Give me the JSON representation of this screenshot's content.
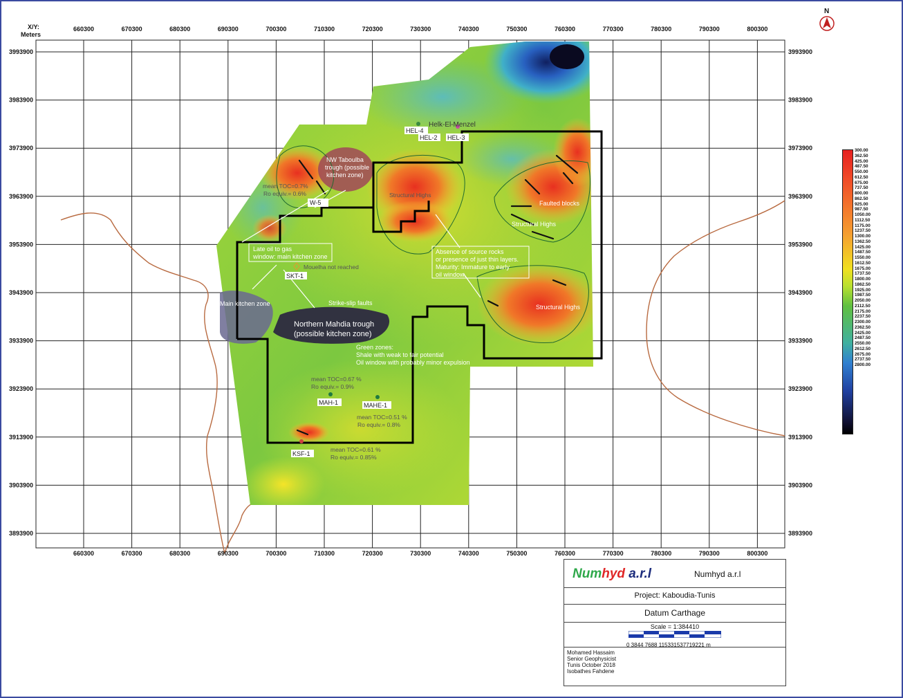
{
  "corner_label": [
    "X/Y:",
    "Meters"
  ],
  "x_ticks": [
    "660300",
    "670300",
    "680300",
    "690300",
    "700300",
    "710300",
    "720300",
    "730300",
    "740300",
    "750300",
    "760300",
    "770300",
    "780300",
    "790300",
    "800300"
  ],
  "y_ticks": [
    "3993900",
    "3983900",
    "3973900",
    "3963900",
    "3953900",
    "3943900",
    "3933900",
    "3923900",
    "3913900",
    "3903900",
    "3893900"
  ],
  "north_label": "N",
  "legend": [
    "300.00",
    "362.50",
    "425.00",
    "487.50",
    "550.00",
    "612.50",
    "675.00",
    "737.50",
    "800.00",
    "862.50",
    "925.00",
    "987.50",
    "1050.00",
    "1112.50",
    "1175.00",
    "1237.50",
    "1300.00",
    "1362.50",
    "1425.00",
    "1487.50",
    "1550.00",
    "1612.50",
    "1675.00",
    "1737.50",
    "1800.00",
    "1862.50",
    "1925.00",
    "1987.50",
    "2050.00",
    "2112.50",
    "2175.00",
    "2237.50",
    "2300.00",
    "2362.50",
    "2425.00",
    "2487.50",
    "2550.00",
    "2612.50",
    "2675.00",
    "2737.50",
    "2800.00"
  ],
  "annotations": {
    "helk": "Helk-El-Menzel",
    "nw_trough": [
      "NW Taboulba",
      "trough (possible",
      "kitchen zone)"
    ],
    "toc_nw": [
      "mean TOC=0.7%",
      "Ro equiv.= 0.6%"
    ],
    "struct_highs_1": "Structural Highs",
    "struct_highs_2": "Structural Highs",
    "struct_highs_3": "Structural Highs",
    "faulted": "Faulted blocks",
    "late_oil": [
      "Late oil to gas",
      "window: main kitchen zone"
    ],
    "mouelha": "Mouelha not reached",
    "absence": [
      "Absence of source rocks",
      "or presence of just thin layers.",
      "Maturity: Immature to early",
      "oil window."
    ],
    "main_kitchen": "Main kitchen zone",
    "strike_slip": "Strike-slip faults",
    "mahdia": [
      "Northern Mahdia trough",
      "(possible kitchen zone)"
    ],
    "green_zones": [
      "Green zones:",
      "Shale with weak to fair potential",
      "Oil window with probably minor expulsion"
    ],
    "toc_mah": [
      "mean TOC=0.67 %",
      "Ro equiv.= 0.9%"
    ],
    "toc_mahe": [
      "mean TOC=0.51 %",
      "Ro equiv.= 0.8%"
    ],
    "toc_ksf": [
      "mean TOC=0.61 %",
      "Ro equiv.= 0.85%"
    ]
  },
  "wells": [
    "HEL-4",
    "HEL-2",
    "HEL-3",
    "W-5",
    "SKT-1",
    "MAH-1",
    "MAHE-1",
    "KSF-1"
  ],
  "title_block": {
    "logo": {
      "part1": "Num",
      "part2": "hyd",
      "part3": " a.r.l"
    },
    "company": "Numhyd a.r.l",
    "project": "Project: Kaboudia-Tunis",
    "datum": "Datum Carthage",
    "scale": "Scale = 1:384410",
    "scale_ticks": "0    3844  7688 115331537719221  m",
    "author": [
      "Mohamed Hassaim",
      "Senior Geophysicist",
      "Tunis October 2018",
      "Isobathes Fahdene"
    ]
  }
}
